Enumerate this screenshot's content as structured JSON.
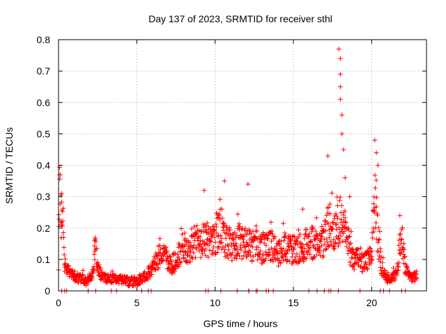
{
  "chart_data": {
    "type": "scatter",
    "title": "Day 137 of 2023, SRMTID for receiver sthl",
    "xlabel": "GPS time / hours",
    "ylabel": "SRMTID / TECUs",
    "xlim": [
      0,
      23.5
    ],
    "ylim": [
      0,
      0.8
    ],
    "xticks": [
      0,
      5,
      10,
      15,
      20
    ],
    "yticks": [
      0,
      0.1,
      0.2,
      0.3,
      0.4,
      0.5,
      0.6,
      0.7,
      0.8
    ],
    "xtick_labels": [
      "0",
      "5",
      "10",
      "15",
      "20"
    ],
    "ytick_labels": [
      "0",
      "0.1",
      "0.2",
      "0.3",
      "0.4",
      "0.5",
      "0.6",
      "0.7",
      "0.8"
    ],
    "grid": true,
    "marker": "+",
    "marker_color": "#ff0000",
    "series": [
      {
        "name": "SRMTID",
        "profile_x": [
          0.0,
          0.05,
          0.1,
          0.2,
          0.3,
          0.4,
          0.6,
          0.8,
          1.0,
          1.2,
          1.5,
          1.8,
          2.0,
          2.2,
          2.35,
          2.5,
          2.7,
          3.0,
          3.5,
          4.0,
          4.5,
          5.0,
          5.3,
          5.6,
          6.0,
          6.3,
          6.6,
          6.9,
          7.2,
          7.5,
          7.8,
          8.0,
          8.3,
          8.6,
          9.0,
          9.3,
          9.6,
          10.0,
          10.3,
          10.6,
          10.9,
          11.2,
          11.6,
          12.0,
          12.3,
          12.6,
          13.0,
          13.5,
          14.0,
          14.5,
          15.0,
          15.5,
          16.0,
          16.5,
          16.9,
          17.1,
          17.3,
          17.5,
          17.8,
          18.0,
          18.2,
          18.4,
          18.6,
          18.9,
          19.2,
          19.5,
          19.8,
          20.0,
          20.2,
          20.4,
          20.6,
          20.8,
          21.0,
          21.3,
          21.6,
          21.9,
          22.1,
          22.3,
          22.6,
          22.9
        ],
        "profile_y": [
          0.3,
          0.32,
          0.28,
          0.25,
          0.18,
          0.08,
          0.06,
          0.05,
          0.05,
          0.04,
          0.04,
          0.03,
          0.04,
          0.05,
          0.14,
          0.08,
          0.05,
          0.04,
          0.04,
          0.035,
          0.03,
          0.03,
          0.04,
          0.05,
          0.07,
          0.1,
          0.12,
          0.1,
          0.08,
          0.1,
          0.12,
          0.14,
          0.12,
          0.16,
          0.15,
          0.17,
          0.16,
          0.15,
          0.22,
          0.16,
          0.15,
          0.14,
          0.16,
          0.15,
          0.14,
          0.16,
          0.13,
          0.15,
          0.12,
          0.14,
          0.13,
          0.14,
          0.15,
          0.16,
          0.15,
          0.2,
          0.22,
          0.17,
          0.2,
          0.23,
          0.2,
          0.18,
          0.13,
          0.1,
          0.1,
          0.09,
          0.1,
          0.12,
          0.3,
          0.18,
          0.08,
          0.05,
          0.04,
          0.04,
          0.05,
          0.19,
          0.09,
          0.05,
          0.04,
          0.05
        ],
        "spikes": [
          {
            "x": 0.1,
            "y": 0.37
          },
          {
            "x": 0.2,
            "y": 0.31
          },
          {
            "x": 2.3,
            "y": 0.16
          },
          {
            "x": 9.3,
            "y": 0.32
          },
          {
            "x": 10.6,
            "y": 0.35
          },
          {
            "x": 12.1,
            "y": 0.34
          },
          {
            "x": 15.6,
            "y": 0.26
          },
          {
            "x": 17.2,
            "y": 0.43
          },
          {
            "x": 17.9,
            "y": 0.77
          },
          {
            "x": 18.0,
            "y": 0.74
          },
          {
            "x": 18.0,
            "y": 0.69
          },
          {
            "x": 18.0,
            "y": 0.65
          },
          {
            "x": 18.0,
            "y": 0.61
          },
          {
            "x": 18.1,
            "y": 0.56
          },
          {
            "x": 18.1,
            "y": 0.5
          },
          {
            "x": 18.2,
            "y": 0.45
          },
          {
            "x": 18.3,
            "y": 0.36
          },
          {
            "x": 18.6,
            "y": 0.3
          },
          {
            "x": 20.2,
            "y": 0.48
          },
          {
            "x": 20.3,
            "y": 0.44
          },
          {
            "x": 20.4,
            "y": 0.4
          },
          {
            "x": 21.8,
            "y": 0.24
          }
        ]
      }
    ]
  }
}
